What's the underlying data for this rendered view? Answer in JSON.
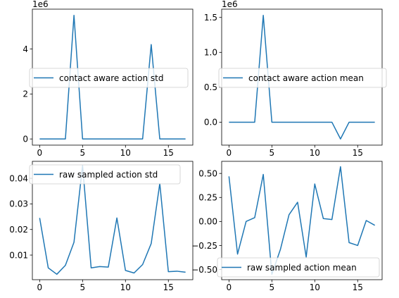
{
  "colors": {
    "series": "#1f77b4",
    "axes": "#000000",
    "background": "#ffffff"
  },
  "chart_data": [
    {
      "type": "line",
      "x": [
        0,
        1,
        2,
        3,
        4,
        5,
        6,
        7,
        8,
        9,
        10,
        11,
        12,
        13,
        14,
        15,
        16,
        17
      ],
      "series": [
        {
          "name": "contact aware action std",
          "values": [
            0,
            0,
            0,
            0,
            5500000,
            0,
            0,
            0,
            0,
            0,
            0,
            0,
            0,
            4200000,
            0,
            0,
            0,
            0
          ]
        }
      ],
      "offset_text": "1e6",
      "xlim": [
        -0.85,
        17.85
      ],
      "ylim": [
        -275000,
        5775000
      ],
      "xticks": [
        0,
        5,
        10,
        15
      ],
      "yticks": [
        0,
        2000000,
        4000000
      ],
      "ytick_labels": [
        "0",
        "2",
        "4"
      ],
      "legend": "upper-left"
    },
    {
      "type": "line",
      "x": [
        0,
        1,
        2,
        3,
        4,
        5,
        6,
        7,
        8,
        9,
        10,
        11,
        12,
        13,
        14,
        15,
        16,
        17
      ],
      "series": [
        {
          "name": "contact aware action mean",
          "values": [
            0,
            0,
            0,
            0,
            1530000,
            0,
            0,
            0,
            0,
            0,
            0,
            0,
            0,
            -240000,
            0,
            0,
            0,
            0
          ]
        }
      ],
      "offset_text": "1e6",
      "xlim": [
        -0.85,
        17.85
      ],
      "ylim": [
        -328500,
        1618500
      ],
      "xticks": [
        0,
        5,
        10,
        15
      ],
      "yticks": [
        0,
        500000,
        1000000,
        1500000
      ],
      "ytick_labels": [
        "0.0",
        "0.5",
        "1.0",
        "1.5"
      ],
      "legend": "upper-left"
    },
    {
      "type": "line",
      "x": [
        0,
        1,
        2,
        3,
        4,
        5,
        6,
        7,
        8,
        9,
        10,
        11,
        12,
        13,
        14,
        15,
        16,
        17
      ],
      "series": [
        {
          "name": "raw sampled action std",
          "values": [
            0.0245,
            0.005,
            0.0025,
            0.006,
            0.015,
            0.045,
            0.005,
            0.0055,
            0.0053,
            0.0245,
            0.004,
            0.003,
            0.0063,
            0.0145,
            0.038,
            0.0035,
            0.0037,
            0.0033
          ]
        }
      ],
      "xlim": [
        -0.85,
        17.85
      ],
      "ylim": [
        0.00038,
        0.04663
      ],
      "xticks": [
        0,
        5,
        10,
        15
      ],
      "yticks": [
        0.01,
        0.02,
        0.03,
        0.04
      ],
      "ytick_labels": [
        "0.01",
        "0.02",
        "0.03",
        "0.04"
      ],
      "legend": "upper-left"
    },
    {
      "type": "line",
      "x": [
        0,
        1,
        2,
        3,
        4,
        5,
        6,
        7,
        8,
        9,
        10,
        11,
        12,
        13,
        14,
        15,
        16,
        17
      ],
      "series": [
        {
          "name": "raw sampled action mean",
          "values": [
            0.47,
            -0.34,
            0.0,
            0.04,
            0.49,
            -0.55,
            -0.29,
            0.07,
            0.2,
            -0.37,
            0.39,
            0.03,
            0.02,
            0.57,
            -0.22,
            -0.25,
            0.01,
            -0.04
          ]
        }
      ],
      "xlim": [
        -0.85,
        17.85
      ],
      "ylim": [
        -0.606,
        0.626
      ],
      "xticks": [
        0,
        5,
        10,
        15
      ],
      "yticks": [
        -0.5,
        -0.25,
        0.0,
        0.25,
        0.5
      ],
      "ytick_labels": [
        "−0.50",
        "−0.25",
        "0.00",
        "0.25",
        "0.50"
      ],
      "legend": "lower-right"
    }
  ]
}
